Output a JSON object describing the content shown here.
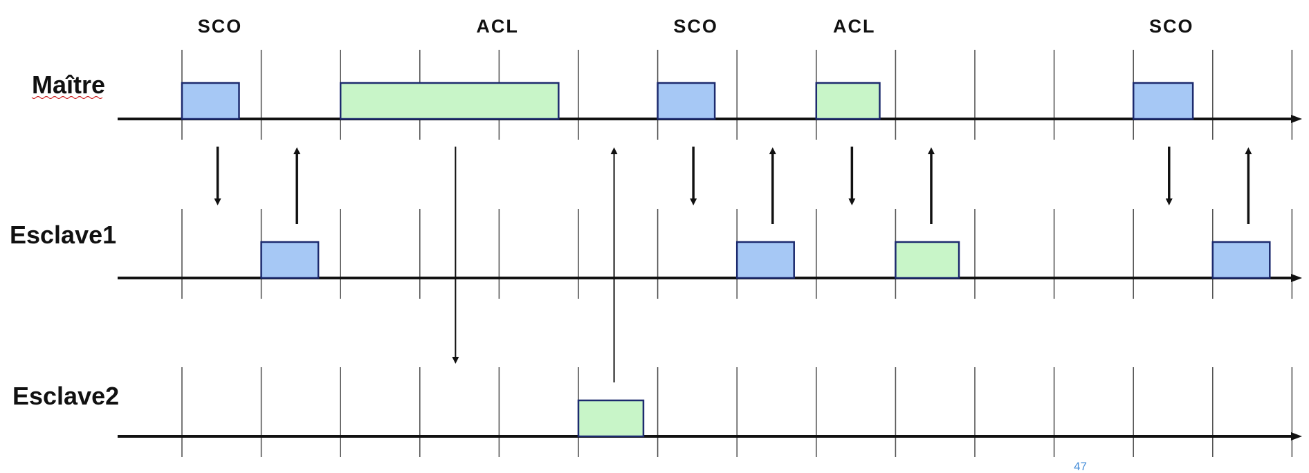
{
  "top_labels": [
    {
      "slot": 0,
      "text": "SCO"
    },
    {
      "slot": 3.5,
      "text": "ACL"
    },
    {
      "slot": 6,
      "text": "SCO"
    },
    {
      "slot": 8,
      "text": "ACL"
    },
    {
      "slot": 12,
      "text": "SCO"
    }
  ],
  "rows": [
    {
      "label": "Maître",
      "key": "maitre"
    },
    {
      "label": "Esclave1",
      "key": "esclave1"
    },
    {
      "label": "Esclave2",
      "key": "esclave2"
    }
  ],
  "packets": [
    {
      "row": 0,
      "type": "SCO",
      "start_slot": 0,
      "length_slots": 0.72
    },
    {
      "row": 0,
      "type": "ACL",
      "start_slot": 2,
      "length_slots": 2.75
    },
    {
      "row": 0,
      "type": "SCO",
      "start_slot": 6,
      "length_slots": 0.72
    },
    {
      "row": 0,
      "type": "ACL",
      "start_slot": 8,
      "length_slots": 0.8
    },
    {
      "row": 0,
      "type": "SCO",
      "start_slot": 12,
      "length_slots": 0.75
    },
    {
      "row": 1,
      "type": "SCO",
      "start_slot": 1,
      "length_slots": 0.72
    },
    {
      "row": 1,
      "type": "SCO",
      "start_slot": 7,
      "length_slots": 0.72
    },
    {
      "row": 1,
      "type": "ACL",
      "start_slot": 9,
      "length_slots": 0.8
    },
    {
      "row": 1,
      "type": "SCO",
      "start_slot": 13,
      "length_slots": 0.72
    },
    {
      "row": 2,
      "type": "ACL",
      "start_slot": 5,
      "length_slots": 0.82
    }
  ],
  "arrows": [
    {
      "slot": 0.45,
      "from_row": 0,
      "to_row": 1,
      "direction": "down"
    },
    {
      "slot": 1.45,
      "from_row": 1,
      "to_row": 0,
      "direction": "up"
    },
    {
      "slot": 3.45,
      "from_row": 0,
      "to_row": 2,
      "direction": "down"
    },
    {
      "slot": 5.45,
      "from_row": 2,
      "to_row": 0,
      "direction": "up"
    },
    {
      "slot": 6.45,
      "from_row": 0,
      "to_row": 1,
      "direction": "down"
    },
    {
      "slot": 7.45,
      "from_row": 1,
      "to_row": 0,
      "direction": "up"
    },
    {
      "slot": 8.45,
      "from_row": 0,
      "to_row": 1,
      "direction": "down"
    },
    {
      "slot": 9.45,
      "from_row": 1,
      "to_row": 0,
      "direction": "up"
    },
    {
      "slot": 12.45,
      "from_row": 0,
      "to_row": 1,
      "direction": "down"
    },
    {
      "slot": 13.45,
      "from_row": 1,
      "to_row": 0,
      "direction": "up"
    }
  ],
  "slot_count": 14,
  "colors": {
    "SCO": "#a6c8f5",
    "ACL": "#c8f5c8",
    "outline": "#1c2a6e",
    "axis": "#111111",
    "tick": "#555555"
  },
  "page_number": "47"
}
